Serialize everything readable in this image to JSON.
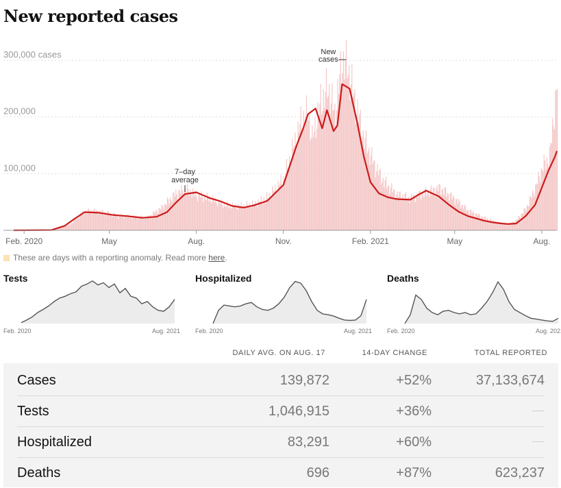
{
  "title": "New reported cases",
  "chart_data": {
    "type": "bar",
    "title": "New reported cases",
    "y_unit": "cases",
    "ylim": [
      0,
      300000
    ],
    "y_ticks": [
      {
        "value": 300000,
        "label": "300,000 cases"
      },
      {
        "value": 200000,
        "label": "200,000"
      },
      {
        "value": 100000,
        "label": "100,000"
      }
    ],
    "x_ticks": [
      {
        "date": "2020-02-01",
        "label": "Feb. 2020"
      },
      {
        "date": "2020-05-01",
        "label": "May"
      },
      {
        "date": "2020-08-01",
        "label": "Aug."
      },
      {
        "date": "2020-11-01",
        "label": "Nov."
      },
      {
        "date": "2021-02-01",
        "label": "Feb. 2021"
      },
      {
        "date": "2021-05-01",
        "label": "May"
      },
      {
        "date": "2021-08-01",
        "label": "Aug."
      }
    ],
    "date_range": [
      "2020-01-21",
      "2021-08-17"
    ],
    "series": [
      {
        "name": "New cases",
        "style": "bars",
        "color": "#f4c6c6",
        "x": [
          "2020-01-21",
          "2020-03-01",
          "2020-03-20",
          "2020-04-01",
          "2020-04-10",
          "2020-04-25",
          "2020-05-10",
          "2020-05-25",
          "2020-06-10",
          "2020-06-25",
          "2020-07-10",
          "2020-07-20",
          "2020-08-01",
          "2020-08-15",
          "2020-09-01",
          "2020-09-15",
          "2020-10-01",
          "2020-10-15",
          "2020-11-01",
          "2020-11-10",
          "2020-11-20",
          "2020-11-27",
          "2020-12-01",
          "2020-12-10",
          "2020-12-18",
          "2020-12-25",
          "2021-01-02",
          "2021-01-08",
          "2021-01-15",
          "2021-01-25",
          "2021-02-05",
          "2021-02-15",
          "2021-03-01",
          "2021-03-15",
          "2021-04-01",
          "2021-04-15",
          "2021-05-01",
          "2021-05-15",
          "2021-06-01",
          "2021-06-15",
          "2021-06-25",
          "2021-07-05",
          "2021-07-15",
          "2021-07-25",
          "2021-08-01",
          "2021-08-09",
          "2021-08-17"
        ],
        "values": [
          0,
          500,
          10000,
          30000,
          35000,
          32000,
          26000,
          24000,
          23000,
          40000,
          65000,
          72000,
          62000,
          56000,
          44000,
          42000,
          46000,
          58000,
          90000,
          140000,
          195000,
          205000,
          160000,
          225000,
          250000,
          205000,
          300000,
          285000,
          230000,
          160000,
          115000,
          85000,
          63000,
          57000,
          68000,
          75000,
          55000,
          35000,
          22000,
          14000,
          9000,
          18000,
          38000,
          75000,
          110000,
          130000,
          260000
        ]
      },
      {
        "name": "7-day average",
        "style": "line",
        "color": "#cc1a1a",
        "x": [
          "2020-01-21",
          "2020-03-01",
          "2020-03-15",
          "2020-03-25",
          "2020-04-05",
          "2020-04-20",
          "2020-05-05",
          "2020-05-20",
          "2020-06-05",
          "2020-06-20",
          "2020-07-01",
          "2020-07-10",
          "2020-07-20",
          "2020-08-01",
          "2020-08-15",
          "2020-08-25",
          "2020-09-08",
          "2020-09-20",
          "2020-10-01",
          "2020-10-15",
          "2020-11-01",
          "2020-11-08",
          "2020-11-15",
          "2020-11-22",
          "2020-11-27",
          "2020-12-01",
          "2020-12-05",
          "2020-12-12",
          "2020-12-17",
          "2020-12-24",
          "2020-12-28",
          "2021-01-02",
          "2021-01-10",
          "2021-01-18",
          "2021-01-25",
          "2021-02-01",
          "2021-02-10",
          "2021-02-20",
          "2021-03-01",
          "2021-03-15",
          "2021-03-25",
          "2021-04-01",
          "2021-04-14",
          "2021-04-25",
          "2021-05-05",
          "2021-05-15",
          "2021-06-01",
          "2021-06-10",
          "2021-06-20",
          "2021-06-26",
          "2021-07-05",
          "2021-07-15",
          "2021-07-25",
          "2021-08-01",
          "2021-08-08",
          "2021-08-15",
          "2021-08-17"
        ],
        "values": [
          0,
          500,
          8000,
          20000,
          32000,
          31000,
          27000,
          25000,
          22000,
          24000,
          32000,
          48000,
          64000,
          67000,
          57000,
          52000,
          43000,
          40000,
          44000,
          52000,
          80000,
          115000,
          150000,
          180000,
          205000,
          210000,
          215000,
          180000,
          212000,
          175000,
          185000,
          258000,
          250000,
          190000,
          130000,
          85000,
          65000,
          58000,
          55000,
          54000,
          64000,
          70000,
          60000,
          45000,
          33000,
          25000,
          17000,
          14000,
          12000,
          11000,
          12000,
          25000,
          45000,
          75000,
          105000,
          130000,
          140000
        ]
      }
    ],
    "annotations": [
      {
        "text": "7–day average",
        "target": "7-day average",
        "x": "2020-07-20"
      },
      {
        "text": "New cases",
        "target": "New cases",
        "x": "2021-01-02"
      }
    ]
  },
  "note": {
    "text": "These are days with a reporting anomaly. Read more ",
    "link": "here",
    "tail": "."
  },
  "mini_charts": [
    {
      "title": "Tests",
      "from": "Feb. 2020",
      "to": "Aug. 2021",
      "values": [
        0.02,
        0.08,
        0.15,
        0.25,
        0.32,
        0.4,
        0.5,
        0.58,
        0.62,
        0.68,
        0.72,
        0.85,
        0.9,
        0.97,
        0.88,
        0.93,
        0.82,
        0.9,
        0.7,
        0.8,
        0.62,
        0.58,
        0.45,
        0.5,
        0.38,
        0.3,
        0.28,
        0.38,
        0.55
      ]
    },
    {
      "title": "Hospitalized",
      "from": "Feb. 2020",
      "to": "Aug. 2021",
      "values": [
        0.0,
        0.3,
        0.42,
        0.4,
        0.38,
        0.4,
        0.45,
        0.48,
        0.38,
        0.32,
        0.3,
        0.35,
        0.45,
        0.6,
        0.82,
        0.96,
        0.92,
        0.75,
        0.5,
        0.3,
        0.22,
        0.2,
        0.17,
        0.12,
        0.08,
        0.07,
        0.08,
        0.18,
        0.55
      ]
    },
    {
      "title": "Deaths",
      "from": "Feb. 2020",
      "to": "Aug. 2021",
      "values": [
        0.0,
        0.2,
        0.65,
        0.55,
        0.35,
        0.25,
        0.2,
        0.28,
        0.3,
        0.25,
        0.22,
        0.25,
        0.2,
        0.22,
        0.35,
        0.5,
        0.7,
        0.95,
        0.78,
        0.5,
        0.32,
        0.25,
        0.18,
        0.12,
        0.1,
        0.08,
        0.06,
        0.05,
        0.12
      ]
    }
  ],
  "table": {
    "headers": {
      "avg": "DAILY AVG. ON AUG. 17",
      "change": "14-DAY CHANGE",
      "total": "TOTAL REPORTED"
    },
    "rows": [
      {
        "label": "Cases",
        "avg": "139,872",
        "change": "+52%",
        "total": "37,133,674"
      },
      {
        "label": "Tests",
        "avg": "1,046,915",
        "change": "+36%",
        "total": ""
      },
      {
        "label": "Hospitalized",
        "avg": "83,291",
        "change": "+60%",
        "total": ""
      },
      {
        "label": "Deaths",
        "avg": "696",
        "change": "+87%",
        "total": "623,237"
      }
    ]
  },
  "colors": {
    "bar": "#f4c6c6",
    "line": "#cc1a1a",
    "anomaly": "#f9e3b4",
    "mini_line": "#555555",
    "mini_fill": "#ececec",
    "table_bg": "#f3f3f3"
  }
}
